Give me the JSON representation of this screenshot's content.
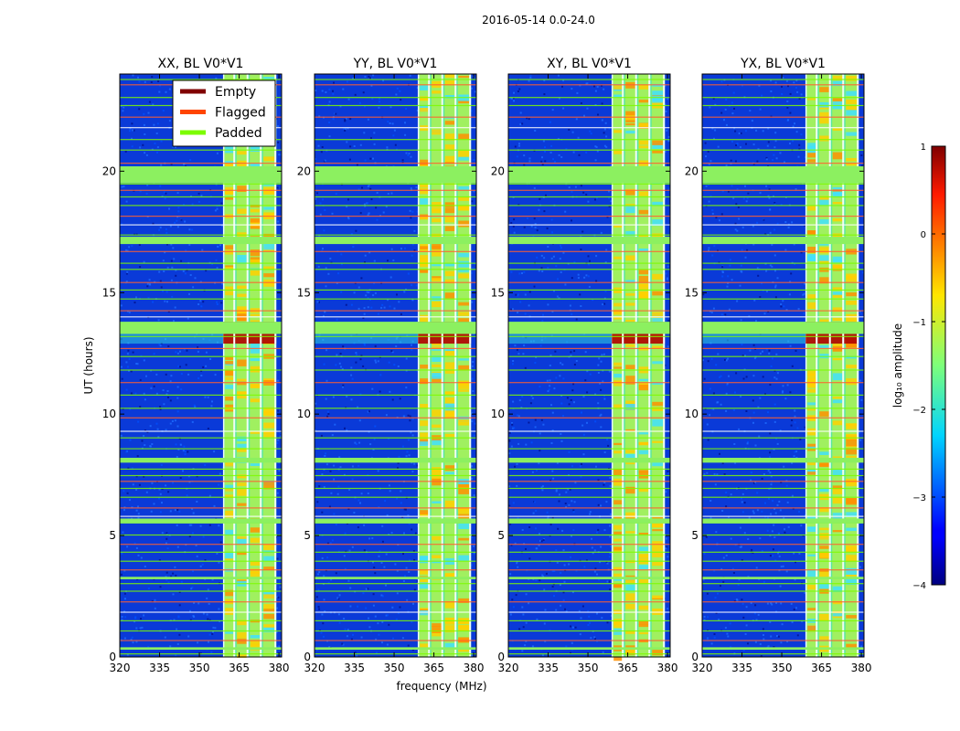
{
  "figure_title": "2016-05-14 0.0-24.0",
  "chart_data": {
    "type": "heatmap",
    "title": "2016-05-14 0.0-24.0",
    "xlabel": "frequency (MHz)",
    "ylabel": "UT (hours)",
    "xlim": [
      320,
      381
    ],
    "ylim": [
      0,
      24
    ],
    "xticks": [
      320,
      335,
      350,
      365,
      380
    ],
    "yticks": [
      0,
      5,
      10,
      15,
      20
    ],
    "panels": [
      {
        "title": "XX, BL V0*V1",
        "polarization": "XX"
      },
      {
        "title": "YY, BL V0*V1",
        "polarization": "YY"
      },
      {
        "title": "XY, BL V0*V1",
        "polarization": "XY"
      },
      {
        "title": "YX, BL V0*V1",
        "polarization": "YX"
      }
    ],
    "rfi_band_mhz": [
      359,
      379
    ],
    "rfi_subband_edges_mhz": [
      363.5,
      368.5,
      373.5
    ],
    "strong_burst_hours": [
      12.9,
      13.8
    ],
    "padded_hours": [
      [
        19.5,
        20.2
      ],
      [
        17.0,
        17.3
      ],
      [
        13.3,
        13.8
      ],
      [
        8.0,
        8.2
      ],
      [
        5.5,
        5.7
      ],
      [
        3.2,
        3.3
      ],
      [
        0.3,
        0.4
      ]
    ],
    "legend": {
      "placement": "top-right of first panel",
      "entries": [
        {
          "label": "Empty",
          "color": "#800000"
        },
        {
          "label": "Flagged",
          "color": "#ff4500"
        },
        {
          "label": "Padded",
          "color": "#7cfc00"
        }
      ]
    },
    "colorbar": {
      "label": "log₁₀ amplitude",
      "min": -4,
      "max": 1,
      "ticks": [
        1,
        0,
        -1,
        -2,
        -3,
        -4
      ],
      "colormap": "jet"
    }
  }
}
